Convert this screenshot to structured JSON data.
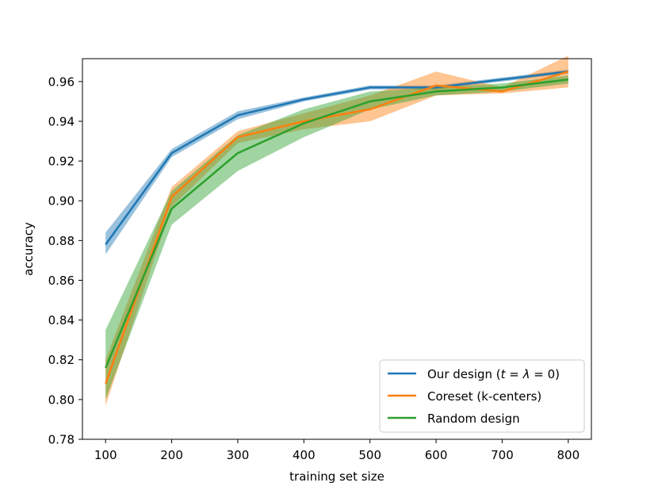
{
  "chart_data": {
    "type": "line",
    "title": "",
    "xlabel": "training set size",
    "ylabel": "accuracy",
    "x": [
      100,
      200,
      300,
      400,
      500,
      600,
      700,
      800
    ],
    "xticks": [
      100,
      200,
      300,
      400,
      500,
      600,
      700,
      800
    ],
    "xlim": [
      65,
      835
    ],
    "yticks": [
      0.78,
      0.8,
      0.82,
      0.84,
      0.86,
      0.88,
      0.9,
      0.92,
      0.94,
      0.96
    ],
    "ytick_labels": [
      "0.78",
      "0.80",
      "0.82",
      "0.84",
      "0.86",
      "0.88",
      "0.90",
      "0.92",
      "0.94",
      "0.96"
    ],
    "ylim": [
      0.78,
      0.9715
    ],
    "grid": false,
    "legend_position": "lower-right",
    "series": [
      {
        "name": "Our design (t = λ = 0)",
        "legend_prefix": "Our design (",
        "legend_var": "t",
        "legend_eq1": " = ",
        "legend_lambda": "λ",
        "legend_eq2": " = 0)",
        "color": "#1f77b4",
        "values": [
          0.878,
          0.924,
          0.943,
          0.951,
          0.957,
          0.957,
          0.961,
          0.965
        ],
        "lower": [
          0.873,
          0.922,
          0.941,
          0.95,
          0.956,
          0.956,
          0.96,
          0.964
        ],
        "upper": [
          0.884,
          0.926,
          0.945,
          0.952,
          0.958,
          0.958,
          0.962,
          0.966
        ]
      },
      {
        "name": "Coreset (k-centers)",
        "color": "#ff7f0e",
        "values": [
          0.808,
          0.902,
          0.932,
          0.94,
          0.946,
          0.958,
          0.955,
          0.965
        ],
        "lower": [
          0.797,
          0.897,
          0.929,
          0.936,
          0.94,
          0.953,
          0.954,
          0.957
        ],
        "upper": [
          0.82,
          0.907,
          0.935,
          0.944,
          0.953,
          0.965,
          0.957,
          0.973
        ]
      },
      {
        "name": "Random design",
        "color": "#2ca02c",
        "values": [
          0.816,
          0.896,
          0.924,
          0.939,
          0.95,
          0.955,
          0.957,
          0.961
        ],
        "lower": [
          0.8,
          0.888,
          0.915,
          0.932,
          0.946,
          0.953,
          0.955,
          0.959
        ],
        "upper": [
          0.835,
          0.905,
          0.933,
          0.946,
          0.955,
          0.957,
          0.959,
          0.963
        ]
      }
    ]
  }
}
